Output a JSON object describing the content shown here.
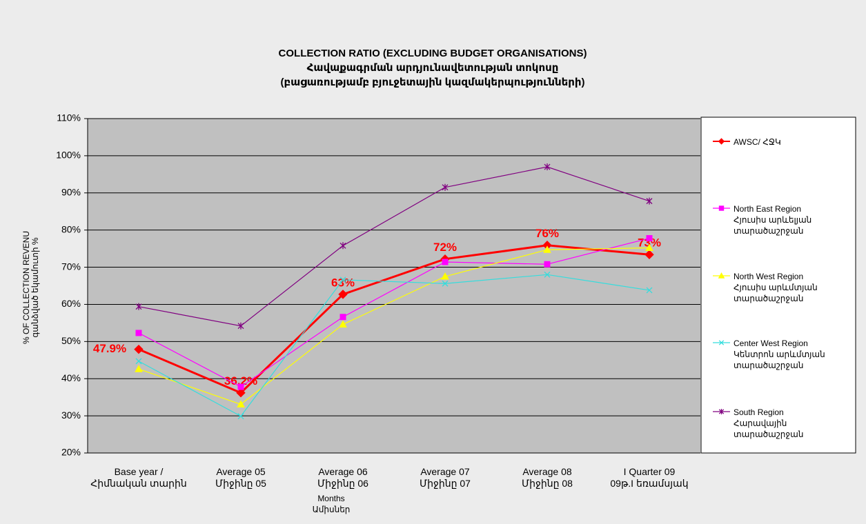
{
  "chart_data": {
    "type": "line",
    "title": "COLLECTION RATIO (EXCLUDING BUDGET ORGANISATIONS)\nՀավաքագրման արդյունավետության տոկոսը\n(բացառությամբ բյուջետային կազմակերպությունների)",
    "y_label": "% OF COLLECTION REVENU\nգանձված եկամուտի %",
    "x_label": "Months\nԱմիսներ",
    "categories": [
      "Base year /\nՀիմնական տարին",
      "Average 05\nՄիջինը 05",
      "Average 06\nՄիջինը 06",
      "Average 07\nՄիջինը 07",
      "Average 08\nՄիջինը 08",
      "I Quarter 09\n09թ.I եռամսյակ"
    ],
    "series": [
      {
        "name": "AWSC/ ՀՋԿ",
        "color": "#ff0000",
        "marker": "diamond",
        "values": [
          47.9,
          36.2,
          62.7,
          72.2,
          75.9,
          73.4
        ],
        "value_labels": [
          "47.9%",
          "36.2%",
          "63%",
          "72%",
          "76%",
          "73%"
        ]
      },
      {
        "name": "North East Region\nՀյուսիս արևելյան\nտարածաշրջան",
        "color": "#ff00ff",
        "marker": "square",
        "values": [
          52.3,
          37.8,
          56.6,
          71.4,
          70.8,
          77.8
        ]
      },
      {
        "name": "North West Region\nՀյուսիս արևմտյան\nտարածաշրջան",
        "color": "#ffff00",
        "marker": "triangle",
        "values": [
          42.6,
          33.1,
          54.6,
          67.5,
          74.7,
          75.2
        ]
      },
      {
        "name": "Center West Region\nԿենտրոն արևմտյան\nտարածաշրջան",
        "color": "#33dddd",
        "marker": "x",
        "values": [
          44.7,
          29.9,
          66.6,
          65.6,
          68.0,
          63.8
        ]
      },
      {
        "name": "South Region\nՀարավային\nտարածաշրջան",
        "color": "#800080",
        "marker": "star",
        "values": [
          59.4,
          54.2,
          75.8,
          91.5,
          97.0,
          87.8
        ]
      }
    ],
    "ylim": [
      20,
      110
    ],
    "yticks": [
      {
        "value": 20,
        "label": "20%"
      },
      {
        "value": 30,
        "label": "30%"
      },
      {
        "value": 40,
        "label": "40%"
      },
      {
        "value": 50,
        "label": "50%"
      },
      {
        "value": 60,
        "label": "60%"
      },
      {
        "value": 70,
        "label": "70%"
      },
      {
        "value": 80,
        "label": "80%"
      },
      {
        "value": 90,
        "label": "90%"
      },
      {
        "value": 100,
        "label": "100%"
      },
      {
        "value": 110,
        "label": "110%"
      }
    ],
    "grid": true
  }
}
